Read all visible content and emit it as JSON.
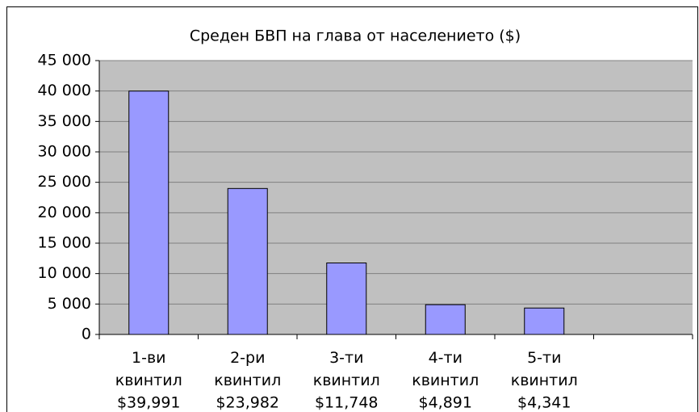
{
  "chart_data": {
    "type": "bar",
    "title": "Среден БВП на глава от населението ($)",
    "categories": [
      "1-ви квинтил",
      "2-ри квинтил",
      "3-ти квинтил",
      "4-ти квинтил",
      "5-ти квинтил",
      null
    ],
    "values": [
      39991,
      23982,
      11748,
      4891,
      4341,
      null
    ],
    "value_labels": [
      "$39,991",
      "$23,982",
      "$11,748",
      "$4,891",
      "$4,341",
      null
    ],
    "color": "#9999ff",
    "ylim": [
      0,
      45000
    ],
    "yticks": [
      0,
      {
        "value": 5000,
        "label": "5 000"
      },
      {
        "value": 10000,
        "label": "10 000"
      },
      {
        "value": 15000,
        "label": "15 000"
      },
      {
        "value": 20000,
        "label": "20 000"
      },
      {
        "value": 25000,
        "label": "25 000"
      },
      {
        "value": 30000,
        "label": "30 000"
      },
      {
        "value": 35000,
        "label": "35 000"
      },
      {
        "value": 40000,
        "label": "40 000"
      },
      {
        "value": 45000,
        "label": "45 000"
      }
    ],
    "grid": true
  }
}
